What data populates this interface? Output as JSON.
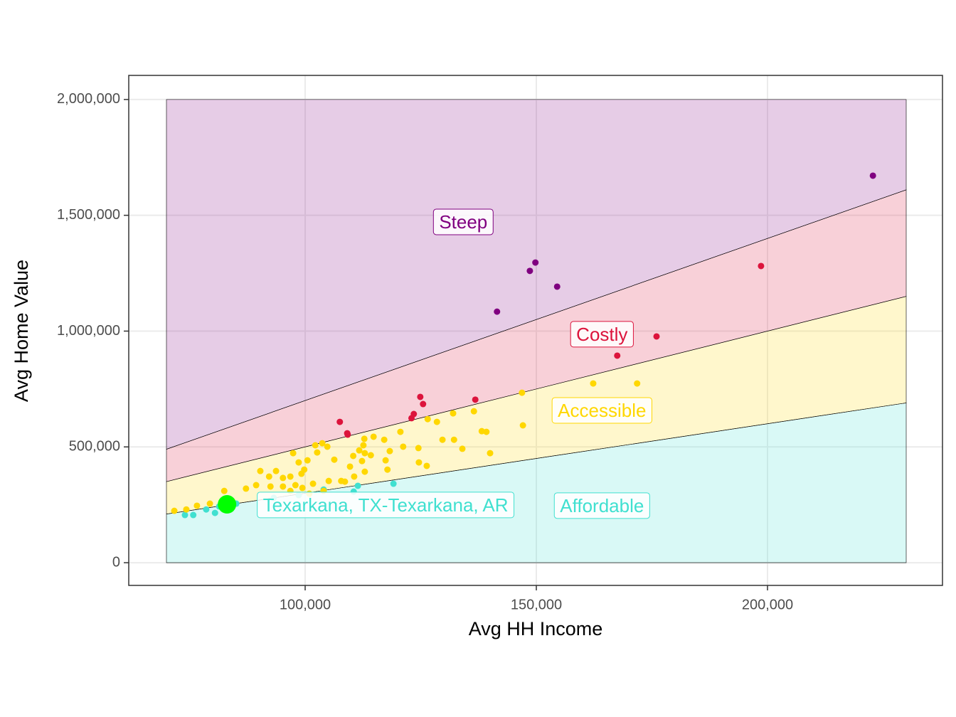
{
  "chart_data": {
    "type": "scatter",
    "x_label": "Avg HH Income",
    "y_label": "Avg Home Value",
    "xlim": [
      61846,
      237846
    ],
    "ylim": [
      -98000,
      2104000
    ],
    "xticks": [
      {
        "value": 100000,
        "label": "100,000"
      },
      {
        "value": 150000,
        "label": "150,000"
      },
      {
        "value": 200000,
        "label": "200,000"
      }
    ],
    "yticks": [
      0,
      {
        "value": 500000,
        "label": "500,000"
      },
      {
        "value": 1000000,
        "label": "1,000,000"
      },
      {
        "value": 1500000,
        "label": "1,500,000"
      },
      {
        "value": 2000000,
        "label": "2,000,000"
      }
    ],
    "grid": true,
    "bands": [
      {
        "name": "Affordable",
        "color": "#40e0d0",
        "x": [
          70000,
          230000
        ],
        "lower": [
          0,
          0
        ],
        "upper": [
          210000,
          690000
        ],
        "label_x": 164200,
        "label_y": 240000,
        "points": {
          "x": [
            119100,
            111400,
            104000,
            110500,
            74000,
            75800,
            78600,
            80500,
            81400,
            85100,
            93200,
            98600
          ],
          "y": [
            341000,
            332000,
            316000,
            307000,
            206000,
            206000,
            230000,
            215000,
            243000,
            255000,
            280000,
            292000
          ]
        }
      },
      {
        "name": "Accessible",
        "color": "#ffd700",
        "x": [
          70000,
          230000
        ],
        "lower": [
          210000,
          690000
        ],
        "upper": [
          350000,
          1150000
        ],
        "label_x": 164200,
        "label_y": 651000,
        "points": {
          "x": [
            162300,
            171800,
            146900,
            147100,
            136500,
            132000,
            128500,
            138200,
            139200,
            140000,
            134000,
            132200,
            129700,
            126500,
            120600,
            124500,
            121200,
            124600,
            126300,
            118300,
            117100,
            114800,
            112800,
            112600,
            112900,
            111700,
            112300,
            112900,
            110400,
            109700,
            110600,
            108600,
            106300,
            104800,
            103700,
            102600,
            102200,
            100500,
            99800,
            99200,
            98600,
            97400,
            96800,
            95200,
            93700,
            92200,
            90300,
            92500,
            95200,
            97900,
            101700,
            105100,
            107800,
            117400,
            117800,
            114200,
            87200,
            82500,
            79400,
            76600,
            74300,
            71700,
            89400,
            100900,
            96800,
            104000,
            99400
          ],
          "y": [
            774000,
            774000,
            734000,
            593000,
            654000,
            645000,
            608000,
            568000,
            565000,
            473000,
            492000,
            531000,
            531000,
            620000,
            565000,
            495000,
            501000,
            433000,
            418000,
            482000,
            531000,
            544000,
            535000,
            507000,
            473000,
            485000,
            439000,
            393000,
            461000,
            415000,
            372000,
            350000,
            445000,
            501000,
            516000,
            476000,
            507000,
            442000,
            402000,
            384000,
            433000,
            473000,
            372000,
            366000,
            396000,
            372000,
            396000,
            329000,
            329000,
            335000,
            341000,
            353000,
            353000,
            442000,
            402000,
            464000,
            320000,
            310000,
            255000,
            246000,
            230000,
            224000,
            335000,
            298000,
            310000,
            310000,
            323000
          ]
        }
      },
      {
        "name": "Costly",
        "color": "#dc143c",
        "x": [
          70000,
          230000
        ],
        "lower": [
          350000,
          1150000
        ],
        "upper": [
          490000,
          1610000
        ],
        "label_x": 164200,
        "label_y": 980000,
        "points": {
          "x": [
            198600,
            176000,
            167500,
            136800,
            124900,
            125500,
            123500,
            123000,
            107500,
            109100,
            109200
          ],
          "y": [
            1281000,
            977000,
            894000,
            704000,
            716000,
            685000,
            642000,
            624000,
            608000,
            559000,
            553000
          ]
        }
      },
      {
        "name": "Steep",
        "color": "#800080",
        "x": [
          70000,
          230000
        ],
        "lower": [
          490000,
          1610000
        ],
        "upper": [
          2000000,
          2000000
        ],
        "label_x": 134200,
        "label_y": 1465000,
        "points": {
          "x": [
            222800,
            149800,
            148600,
            154500,
            141500
          ],
          "y": [
            1671000,
            1296000,
            1260000,
            1192000,
            1084000
          ]
        }
      }
    ],
    "highlight": {
      "label": "Texarkana, TX-Texarkana, AR",
      "x": 83100,
      "y": 252000,
      "color": "#00ff00",
      "label_color": "#40e0d0",
      "label_x": 117400,
      "label_y": 243000
    }
  }
}
